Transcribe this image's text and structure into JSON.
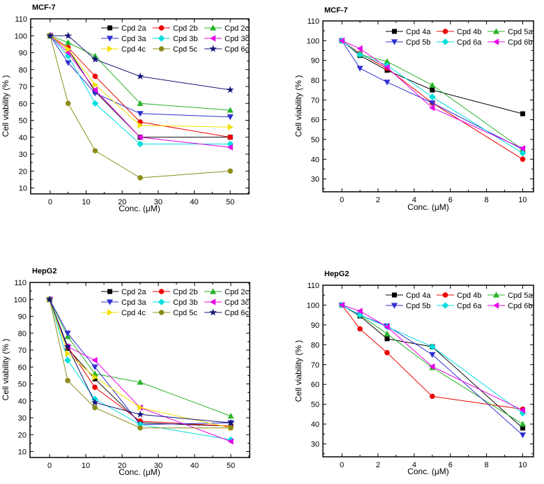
{
  "figure": {
    "background": "#ffffff",
    "axis_color": "#000000",
    "description_titles": [
      "MCF-7",
      "MCF-7",
      "HepG2",
      "HepG2"
    ]
  },
  "chart_data": [
    {
      "id": "mcf7-set1",
      "type": "line",
      "title": "MCF-7",
      "xlabel": "Conc. (μM)",
      "ylabel": "Cell viability (% )",
      "x": [
        0,
        5,
        12.5,
        25,
        50
      ],
      "xlim": [
        -5.4,
        55.2
      ],
      "ylim": [
        6.5,
        110
      ],
      "xticks": [
        0,
        10,
        20,
        30,
        40,
        50
      ],
      "yticks": [
        10,
        20,
        30,
        40,
        50,
        60,
        70,
        80,
        90,
        100,
        110
      ],
      "xminors": [
        5,
        15,
        25,
        35,
        45,
        55
      ],
      "yminors": [
        15,
        25,
        35,
        45,
        55,
        65,
        75,
        85,
        95,
        105
      ],
      "legend_cols": 3,
      "legend_position": "top-inside",
      "grid": false,
      "series": [
        {
          "name": "Cpd 2a",
          "marker": "square",
          "color": "#000000",
          "values": [
            100,
            92,
            67,
            40,
            40
          ]
        },
        {
          "name": "Cpd 2b",
          "marker": "circle",
          "color": "#ee0000",
          "values": [
            100,
            93,
            76,
            49,
            40
          ]
        },
        {
          "name": "Cpd 2c",
          "marker": "triangle-up",
          "color": "#28b428",
          "values": [
            100,
            96,
            88,
            60,
            56
          ]
        },
        {
          "name": "Cpd 3a",
          "marker": "triangle-down",
          "color": "#3030d0",
          "values": [
            100,
            84,
            66,
            54,
            52
          ]
        },
        {
          "name": "Cpd 3b",
          "marker": "diamond",
          "color": "#00dede",
          "values": [
            100,
            88,
            60,
            36,
            36
          ]
        },
        {
          "name": "Cpd 3c",
          "marker": "triangle-left",
          "color": "#e800e8",
          "values": [
            100,
            90,
            68,
            40,
            34
          ]
        },
        {
          "name": "Cpd 4c",
          "marker": "triangle-right",
          "color": "#f0e000",
          "values": [
            100,
            92,
            71,
            47,
            46
          ]
        },
        {
          "name": "Cpd 5c",
          "marker": "circle",
          "color": "#8c8c1a",
          "values": [
            100,
            60,
            32,
            16,
            20
          ]
        },
        {
          "name": "Cpd 6c",
          "marker": "star",
          "color": "#14147a",
          "values": [
            100,
            100,
            86,
            76,
            68
          ]
        }
      ]
    },
    {
      "id": "mcf7-set2",
      "type": "line",
      "title": "MCF-7",
      "xlabel": "Conc. (μM)",
      "ylabel": "Cell viability (% )",
      "x": [
        0,
        1,
        2.5,
        5,
        10
      ],
      "xlim": [
        -1.05,
        10.6
      ],
      "ylim": [
        23.5,
        110
      ],
      "xticks": [
        0,
        2,
        4,
        6,
        8,
        10
      ],
      "yticks": [
        30,
        40,
        50,
        60,
        70,
        80,
        90,
        100,
        110
      ],
      "xminors": [
        1,
        3,
        5,
        7,
        9
      ],
      "yminors": [
        25,
        35,
        45,
        55,
        65,
        75,
        85,
        95,
        105
      ],
      "legend_cols": 3,
      "legend_position": "top-inside",
      "grid": false,
      "series": [
        {
          "name": "Cpd 4a",
          "marker": "square",
          "color": "#000000",
          "values": [
            100,
            92.5,
            85,
            75,
            63
          ]
        },
        {
          "name": "Cpd 4b",
          "marker": "circle",
          "color": "#ee0000",
          "values": [
            100,
            93.5,
            86,
            68.5,
            40
          ]
        },
        {
          "name": "Cpd 5a",
          "marker": "triangle-up",
          "color": "#28b428",
          "values": [
            100,
            93,
            89.5,
            77.5,
            45
          ]
        },
        {
          "name": "Cpd 5b",
          "marker": "triangle-down",
          "color": "#3030d0",
          "values": [
            100,
            86,
            79,
            68.5,
            45
          ]
        },
        {
          "name": "Cpd 6a",
          "marker": "diamond",
          "color": "#00dede",
          "values": [
            100,
            93,
            87.5,
            71.5,
            43
          ]
        },
        {
          "name": "Cpd 6b",
          "marker": "triangle-left",
          "color": "#e800e8",
          "values": [
            100,
            96,
            86.5,
            66,
            45.5
          ]
        }
      ]
    },
    {
      "id": "hepg2-set1",
      "type": "line",
      "title": "HepG2",
      "xlabel": "Conc. (μM)",
      "ylabel": "Cell viability (% )",
      "x": [
        0,
        5,
        12.5,
        25,
        50
      ],
      "xlim": [
        -5.4,
        55.2
      ],
      "ylim": [
        6.5,
        110
      ],
      "xticks": [
        0,
        10,
        20,
        30,
        40,
        50
      ],
      "yticks": [
        10,
        20,
        30,
        40,
        50,
        60,
        70,
        80,
        90,
        100,
        110
      ],
      "xminors": [
        5,
        15,
        25,
        35,
        45,
        55
      ],
      "yminors": [
        15,
        25,
        35,
        45,
        55,
        65,
        75,
        85,
        95,
        105
      ],
      "legend_cols": 3,
      "legend_position": "top-inside",
      "grid": false,
      "series": [
        {
          "name": "Cpd 2a",
          "marker": "square",
          "color": "#000000",
          "values": [
            100,
            71,
            53,
            27,
            25
          ]
        },
        {
          "name": "Cpd 2b",
          "marker": "circle",
          "color": "#ee0000",
          "values": [
            100,
            72,
            48,
            28,
            25
          ]
        },
        {
          "name": "Cpd 2c",
          "marker": "triangle-up",
          "color": "#28b428",
          "values": [
            100,
            78,
            56,
            51,
            31
          ]
        },
        {
          "name": "Cpd 3a",
          "marker": "triangle-down",
          "color": "#3030d0",
          "values": [
            100,
            80,
            60,
            26,
            27
          ]
        },
        {
          "name": "Cpd 3b",
          "marker": "diamond",
          "color": "#00dede",
          "values": [
            100,
            64,
            41,
            26,
            17
          ]
        },
        {
          "name": "Cpd 3c",
          "marker": "triangle-left",
          "color": "#e800e8",
          "values": [
            100,
            72,
            64,
            36,
            16
          ]
        },
        {
          "name": "Cpd 4c",
          "marker": "triangle-right",
          "color": "#f0e000",
          "values": [
            100,
            68,
            54,
            36,
            24
          ]
        },
        {
          "name": "Cpd 5c",
          "marker": "circle",
          "color": "#8c8c1a",
          "values": [
            100,
            52,
            36,
            24,
            24
          ]
        },
        {
          "name": "Cpd 6c",
          "marker": "star",
          "color": "#14147a",
          "values": [
            100,
            72,
            39,
            32,
            27
          ]
        }
      ]
    },
    {
      "id": "hepg2-set2",
      "type": "line",
      "title": "HepG2",
      "xlabel": "Conc. (μM)",
      "ylabel": "Cell viability (% )",
      "x": [
        0,
        1,
        2.5,
        5,
        10
      ],
      "xlim": [
        -1.05,
        10.6
      ],
      "ylim": [
        23.5,
        110
      ],
      "xticks": [
        0,
        2,
        4,
        6,
        8,
        10
      ],
      "yticks": [
        30,
        40,
        50,
        60,
        70,
        80,
        90,
        100,
        110
      ],
      "xminors": [
        1,
        3,
        5,
        7,
        9
      ],
      "yminors": [
        25,
        35,
        45,
        55,
        65,
        75,
        85,
        95,
        105
      ],
      "legend_cols": 3,
      "legend_position": "top-inside",
      "grid": false,
      "series": [
        {
          "name": "Cpd 4a",
          "marker": "square",
          "color": "#000000",
          "values": [
            100,
            94.5,
            83,
            79,
            38
          ]
        },
        {
          "name": "Cpd 4b",
          "marker": "circle",
          "color": "#ee0000",
          "values": [
            100,
            88,
            76,
            54,
            47.5
          ]
        },
        {
          "name": "Cpd 5a",
          "marker": "triangle-up",
          "color": "#28b428",
          "values": [
            100,
            95,
            85.5,
            68.5,
            40
          ]
        },
        {
          "name": "Cpd 5b",
          "marker": "triangle-down",
          "color": "#3030d0",
          "values": [
            100,
            95,
            89.5,
            75,
            34.5
          ]
        },
        {
          "name": "Cpd 6a",
          "marker": "diamond",
          "color": "#00dede",
          "values": [
            100,
            95,
            89,
            79,
            45.5
          ]
        },
        {
          "name": "Cpd 6b",
          "marker": "triangle-left",
          "color": "#e800e8",
          "values": [
            100,
            97,
            89,
            69,
            47
          ]
        }
      ]
    }
  ]
}
